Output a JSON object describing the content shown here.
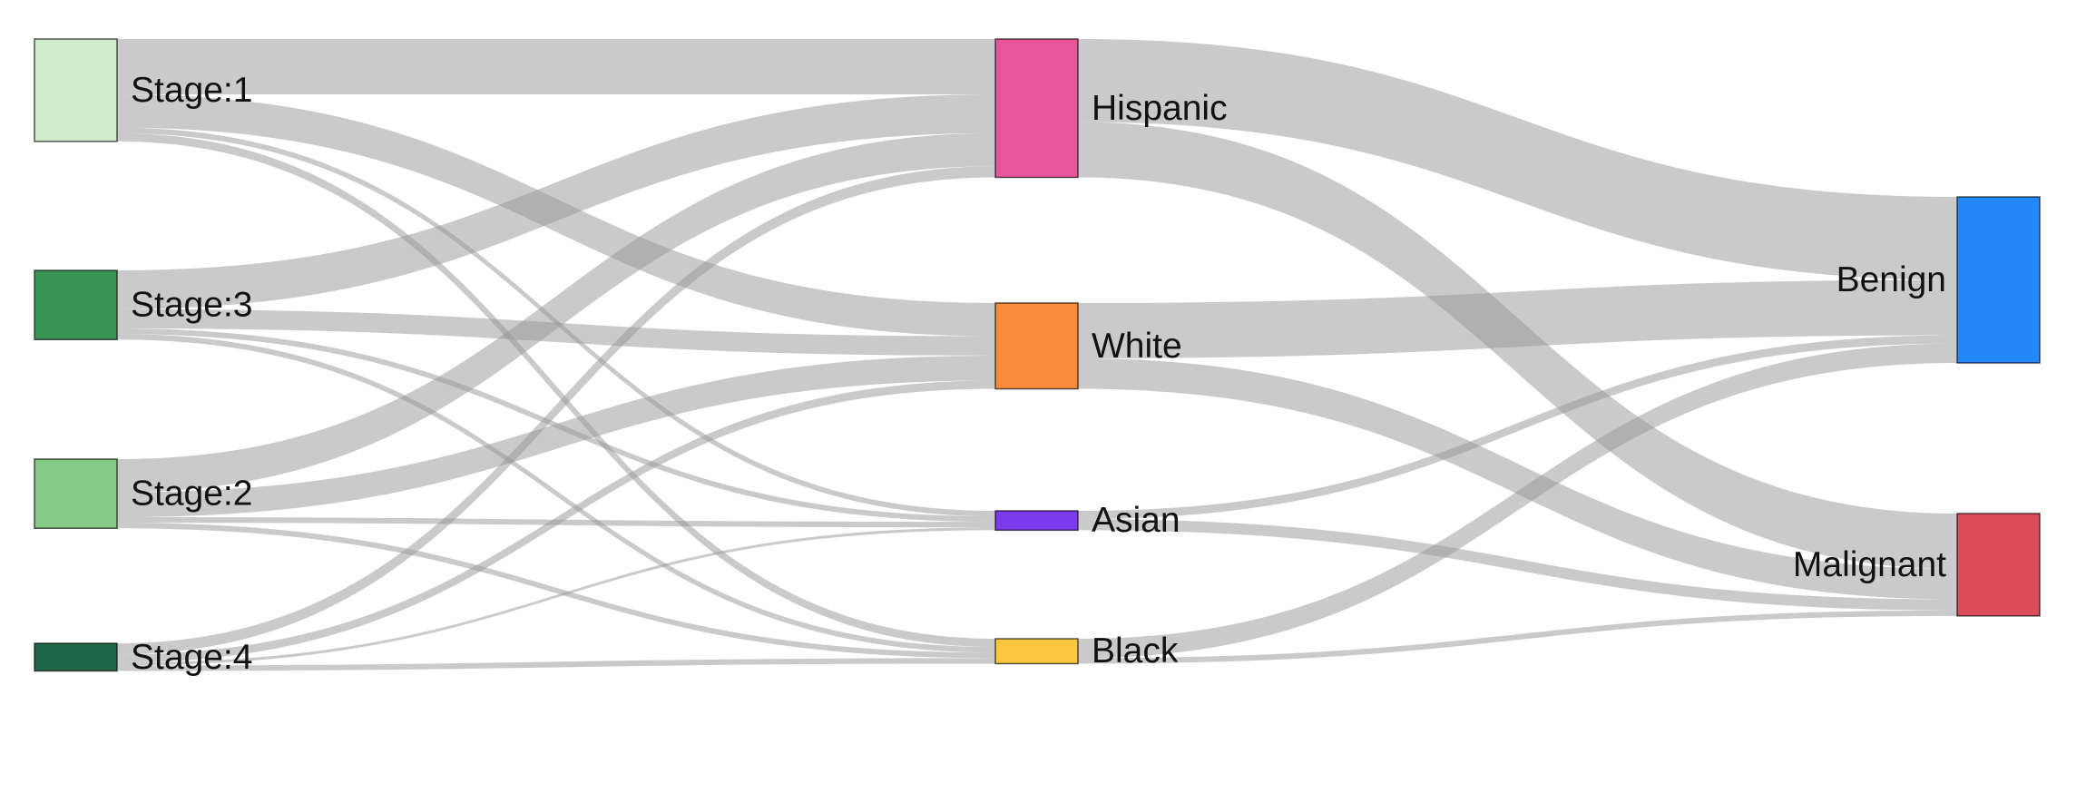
{
  "chart_data": {
    "type": "sankey",
    "nodes": [
      {
        "id": "stage1",
        "label": "Stage:1",
        "column": 0,
        "color": "#cfeccb"
      },
      {
        "id": "stage3",
        "label": "Stage:3",
        "column": 0,
        "color": "#3a9456"
      },
      {
        "id": "stage2",
        "label": "Stage:2",
        "column": 0,
        "color": "#84c985"
      },
      {
        "id": "stage4",
        "label": "Stage:4",
        "column": 0,
        "color": "#1f6646"
      },
      {
        "id": "hispanic",
        "label": "Hispanic",
        "column": 1,
        "color": "#e8559a"
      },
      {
        "id": "white",
        "label": "White",
        "column": 1,
        "color": "#fb8c3c"
      },
      {
        "id": "asian",
        "label": "Asian",
        "column": 1,
        "color": "#7b3aeb"
      },
      {
        "id": "black",
        "label": "Black",
        "column": 1,
        "color": "#fdc63f"
      },
      {
        "id": "benign",
        "label": "Benign",
        "column": 2,
        "color": "#2389fb"
      },
      {
        "id": "malignant",
        "label": "Malignant",
        "column": 2,
        "color": "#dc4b5a"
      }
    ],
    "links": [
      {
        "source": "stage1",
        "target": "hispanic",
        "value": 100
      },
      {
        "source": "stage1",
        "target": "white",
        "value": 60
      },
      {
        "source": "stage1",
        "target": "asian",
        "value": 10
      },
      {
        "source": "stage1",
        "target": "black",
        "value": 15
      },
      {
        "source": "stage3",
        "target": "hispanic",
        "value": 70
      },
      {
        "source": "stage3",
        "target": "white",
        "value": 35
      },
      {
        "source": "stage3",
        "target": "asian",
        "value": 10
      },
      {
        "source": "stage3",
        "target": "black",
        "value": 10
      },
      {
        "source": "stage2",
        "target": "hispanic",
        "value": 60
      },
      {
        "source": "stage2",
        "target": "white",
        "value": 45
      },
      {
        "source": "stage2",
        "target": "asian",
        "value": 10
      },
      {
        "source": "stage2",
        "target": "black",
        "value": 10
      },
      {
        "source": "stage4",
        "target": "hispanic",
        "value": 20
      },
      {
        "source": "stage4",
        "target": "white",
        "value": 15
      },
      {
        "source": "stage4",
        "target": "asian",
        "value": 5
      },
      {
        "source": "stage4",
        "target": "black",
        "value": 10
      },
      {
        "source": "hispanic",
        "target": "benign",
        "value": 150
      },
      {
        "source": "hispanic",
        "target": "malignant",
        "value": 100
      },
      {
        "source": "white",
        "target": "benign",
        "value": 100
      },
      {
        "source": "white",
        "target": "malignant",
        "value": 55
      },
      {
        "source": "asian",
        "target": "benign",
        "value": 15
      },
      {
        "source": "asian",
        "target": "malignant",
        "value": 20
      },
      {
        "source": "black",
        "target": "benign",
        "value": 35
      },
      {
        "source": "black",
        "target": "malignant",
        "value": 10
      }
    ]
  }
}
